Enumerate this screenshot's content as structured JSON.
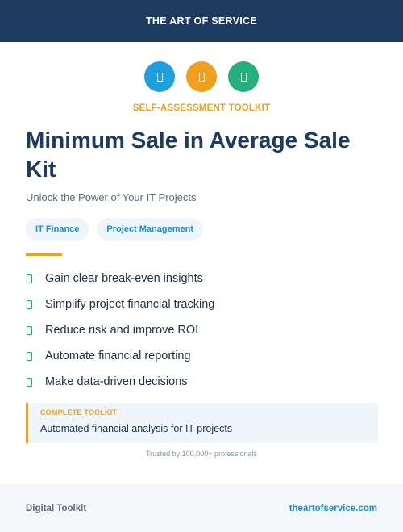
{
  "header": {
    "brand": "THE ART OF SERVICE"
  },
  "icons": [
    {
      "name": "document-icon",
      "color": "#1ea0e0"
    },
    {
      "name": "document-icon",
      "color": "#f0a01d"
    },
    {
      "name": "document-icon",
      "color": "#22b07d"
    }
  ],
  "eyebrow": "SELF-ASSESSMENT TOOLKIT",
  "title": "Minimum Sale in Average Sale Kit",
  "subtitle": "Unlock the Power of Your IT Projects",
  "tags": [
    "IT Finance",
    "Project Management"
  ],
  "benefits": [
    "Gain clear break-even insights",
    "Simplify project financial tracking",
    "Reduce risk and improve ROI",
    "Automate financial reporting",
    "Make data-driven decisions"
  ],
  "callout": {
    "label": "COMPLETE TOOLKIT",
    "text": "Automated financial analysis for IT projects"
  },
  "trusted": "Trusted by 100,000+ professionals",
  "footer": {
    "left": "Digital Toolkit",
    "right": "theartofservice.com"
  },
  "colors": {
    "navy": "#1d3a5f",
    "orange": "#f0a01d",
    "blue": "#1590d0",
    "green": "#1fb07a"
  }
}
